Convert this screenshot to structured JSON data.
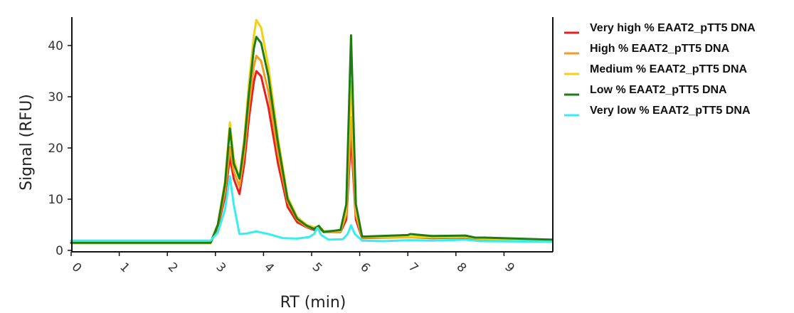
{
  "chart_data": {
    "type": "line",
    "title": "",
    "xlabel": "RT (min)",
    "ylabel": "Signal (RFU)",
    "xlim": [
      0,
      10
    ],
    "ylim": [
      0,
      45
    ],
    "x_ticks": [
      0,
      1,
      2,
      3,
      4,
      5,
      6,
      7,
      8,
      9
    ],
    "y_ticks": [
      0,
      10,
      20,
      30,
      40
    ],
    "grid": false,
    "legend_position": "right",
    "series": [
      {
        "name": "Very high % EAAT2_pTT5 DNA",
        "color": "#e8201c",
        "points": [
          [
            0,
            1.4
          ],
          [
            2.9,
            1.4
          ],
          [
            3.05,
            4.5
          ],
          [
            3.2,
            10.5
          ],
          [
            3.3,
            18.3
          ],
          [
            3.38,
            14
          ],
          [
            3.5,
            11
          ],
          [
            3.6,
            17
          ],
          [
            3.7,
            26
          ],
          [
            3.8,
            33
          ],
          [
            3.85,
            35
          ],
          [
            3.95,
            34
          ],
          [
            4.1,
            28
          ],
          [
            4.3,
            17
          ],
          [
            4.5,
            8.5
          ],
          [
            4.7,
            5.5
          ],
          [
            4.9,
            4.5
          ],
          [
            5.05,
            4
          ],
          [
            5.15,
            4.4
          ],
          [
            5.25,
            3.6
          ],
          [
            5.6,
            3.6
          ],
          [
            5.72,
            6
          ],
          [
            5.82,
            22.3
          ],
          [
            5.92,
            6
          ],
          [
            6.05,
            2.4
          ],
          [
            7.0,
            2.6
          ],
          [
            7.5,
            2.4
          ],
          [
            8.2,
            2.5
          ],
          [
            8.5,
            2.1
          ],
          [
            10,
            2.0
          ]
        ]
      },
      {
        "name": "High % EAAT2_pTT5 DNA",
        "color": "#f39c1f",
        "points": [
          [
            0,
            1.4
          ],
          [
            2.9,
            1.4
          ],
          [
            3.05,
            4.8
          ],
          [
            3.2,
            11.5
          ],
          [
            3.3,
            20.2
          ],
          [
            3.38,
            15.5
          ],
          [
            3.5,
            12.5
          ],
          [
            3.6,
            19
          ],
          [
            3.7,
            28.5
          ],
          [
            3.8,
            36
          ],
          [
            3.85,
            38
          ],
          [
            3.95,
            37
          ],
          [
            4.1,
            31
          ],
          [
            4.3,
            19
          ],
          [
            4.5,
            9.5
          ],
          [
            4.7,
            6
          ],
          [
            4.9,
            4.6
          ],
          [
            5.05,
            4.2
          ],
          [
            5.15,
            4.5
          ],
          [
            5.25,
            3.6
          ],
          [
            5.6,
            3.7
          ],
          [
            5.72,
            7
          ],
          [
            5.82,
            26
          ],
          [
            5.92,
            7
          ],
          [
            6.05,
            2.5
          ],
          [
            7.0,
            2.6
          ],
          [
            7.5,
            2.5
          ],
          [
            8.2,
            2.6
          ],
          [
            8.5,
            2.2
          ],
          [
            10,
            2.0
          ]
        ]
      },
      {
        "name": "Medium % EAAT2_pTT5 DNA",
        "color": "#f5cf16",
        "points": [
          [
            0,
            1.4
          ],
          [
            2.9,
            1.4
          ],
          [
            3.05,
            5.2
          ],
          [
            3.2,
            13.5
          ],
          [
            3.3,
            25
          ],
          [
            3.38,
            18
          ],
          [
            3.5,
            14
          ],
          [
            3.6,
            22
          ],
          [
            3.7,
            33
          ],
          [
            3.8,
            42
          ],
          [
            3.85,
            45
          ],
          [
            3.95,
            43.5
          ],
          [
            4.1,
            36
          ],
          [
            4.3,
            22
          ],
          [
            4.5,
            10.5
          ],
          [
            4.7,
            6.5
          ],
          [
            4.9,
            5
          ],
          [
            5.05,
            4.5
          ],
          [
            5.15,
            4.7
          ],
          [
            5.25,
            3.8
          ],
          [
            5.6,
            3.8
          ],
          [
            5.72,
            8
          ],
          [
            5.82,
            33
          ],
          [
            5.92,
            8
          ],
          [
            6.05,
            2.6
          ],
          [
            7.0,
            2.7
          ],
          [
            7.5,
            2.6
          ],
          [
            8.2,
            2.7
          ],
          [
            8.5,
            2.3
          ],
          [
            10,
            2.0
          ]
        ]
      },
      {
        "name": "Low % EAAT2_pTT5 DNA",
        "color": "#1e7d12",
        "points": [
          [
            0,
            1.5
          ],
          [
            2.9,
            1.5
          ],
          [
            3.05,
            5
          ],
          [
            3.2,
            13
          ],
          [
            3.3,
            23.8
          ],
          [
            3.38,
            17
          ],
          [
            3.5,
            14
          ],
          [
            3.6,
            21
          ],
          [
            3.7,
            31
          ],
          [
            3.8,
            39.5
          ],
          [
            3.85,
            41.7
          ],
          [
            3.95,
            40.5
          ],
          [
            4.1,
            34
          ],
          [
            4.3,
            21
          ],
          [
            4.5,
            10
          ],
          [
            4.7,
            6.2
          ],
          [
            4.9,
            4.8
          ],
          [
            5.05,
            4.2
          ],
          [
            5.15,
            4.8
          ],
          [
            5.25,
            3.6
          ],
          [
            5.6,
            4
          ],
          [
            5.72,
            9
          ],
          [
            5.82,
            42
          ],
          [
            5.92,
            9
          ],
          [
            6.05,
            2.7
          ],
          [
            7.0,
            3
          ],
          [
            7.05,
            3.2
          ],
          [
            7.5,
            2.8
          ],
          [
            8.2,
            2.9
          ],
          [
            8.4,
            2.5
          ],
          [
            8.6,
            2.5
          ],
          [
            10,
            2.1
          ]
        ]
      },
      {
        "name": "Very low % EAAT2_pTT5 DNA",
        "color": "#36eef0",
        "points": [
          [
            0,
            1.9
          ],
          [
            2.9,
            1.9
          ],
          [
            3.05,
            3.5
          ],
          [
            3.2,
            8
          ],
          [
            3.3,
            14.5
          ],
          [
            3.38,
            9
          ],
          [
            3.5,
            3.2
          ],
          [
            3.65,
            3.3
          ],
          [
            3.85,
            3.7
          ],
          [
            4.1,
            3.2
          ],
          [
            4.4,
            2.4
          ],
          [
            4.7,
            2.3
          ],
          [
            4.95,
            2.6
          ],
          [
            5.05,
            3.2
          ],
          [
            5.12,
            4.4
          ],
          [
            5.2,
            3
          ],
          [
            5.35,
            2.1
          ],
          [
            5.65,
            2.2
          ],
          [
            5.75,
            3.2
          ],
          [
            5.82,
            4.9
          ],
          [
            5.9,
            3.2
          ],
          [
            6.05,
            1.9
          ],
          [
            6.5,
            1.8
          ],
          [
            7.0,
            2.0
          ],
          [
            7.5,
            1.9
          ],
          [
            8.2,
            2.1
          ],
          [
            8.5,
            1.8
          ],
          [
            10,
            1.7
          ]
        ]
      }
    ]
  }
}
